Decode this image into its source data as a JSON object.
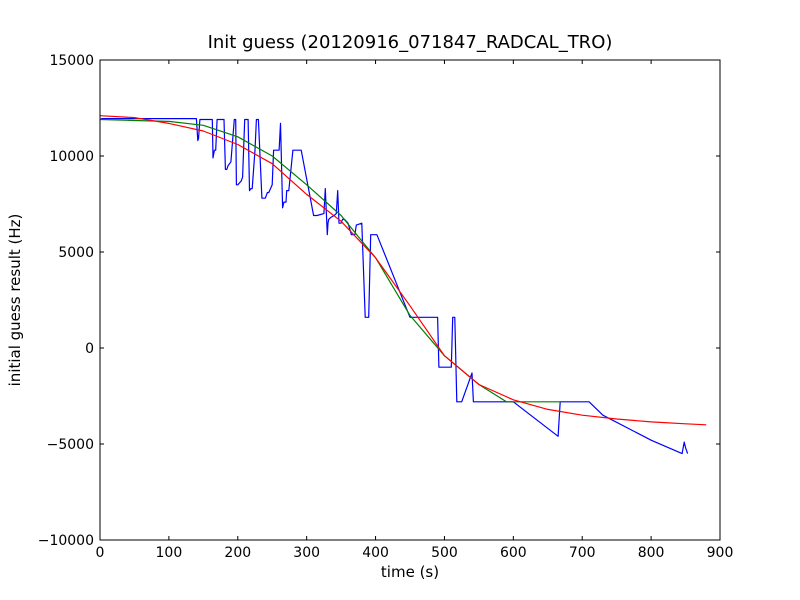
{
  "chart_data": {
    "type": "line",
    "title": "Init guess (20120916_071847_RADCAL_TRO)",
    "xlabel": "time (s)",
    "ylabel": "initial guess result (Hz)",
    "xlim": [
      0,
      900
    ],
    "ylim": [
      -10000,
      15000
    ],
    "xticks": [
      0,
      100,
      200,
      300,
      400,
      500,
      600,
      700,
      800,
      900
    ],
    "yticks": [
      -10000,
      -5000,
      0,
      5000,
      10000,
      15000
    ],
    "xtick_labels": [
      "0",
      "100",
      "200",
      "300",
      "400",
      "500",
      "600",
      "700",
      "800",
      "900"
    ],
    "ytick_labels": [
      "−10000",
      "−5000",
      "0",
      "5000",
      "10000",
      "15000"
    ],
    "grid": false,
    "series": [
      {
        "color": "#0000ff",
        "x": [
          0,
          3,
          140,
          142,
          143,
          145,
          147,
          148,
          163,
          164,
          166,
          168,
          170,
          172,
          173,
          180,
          182,
          184,
          186,
          190,
          195,
          197,
          198,
          200,
          205,
          207,
          210,
          215,
          217,
          219,
          221,
          225,
          227,
          228,
          230,
          235,
          240,
          243,
          245,
          250,
          252,
          254,
          260,
          262,
          265,
          267,
          270,
          271,
          272,
          274,
          280,
          283,
          290,
          292,
          310,
          312,
          315,
          325,
          327,
          330,
          331,
          332,
          335,
          340,
          343,
          345,
          347,
          350,
          352,
          355,
          360,
          365,
          370,
          372,
          380,
          385,
          390,
          393,
          395,
          397,
          398,
          400,
          402,
          450,
          452,
          470,
          472,
          480,
          485,
          490,
          492,
          510,
          512,
          515,
          518,
          520,
          522,
          525,
          540,
          542,
          543,
          545,
          548,
          600,
          665,
          668,
          670,
          675,
          680,
          710,
          730,
          800,
          845,
          848,
          850,
          853
        ],
        "y": [
          11900,
          11950,
          11950,
          10800,
          10900,
          11900,
          11900,
          11900,
          11900,
          9900,
          10300,
          10300,
          11900,
          11900,
          11900,
          11900,
          9300,
          9300,
          9500,
          9700,
          11900,
          11900,
          8500,
          8500,
          8700,
          8900,
          11900,
          11900,
          8200,
          8300,
          8300,
          10300,
          11900,
          11900,
          11900,
          7800,
          7800,
          8100,
          8100,
          8500,
          10300,
          10300,
          10300,
          11700,
          7300,
          7600,
          7600,
          8200,
          8200,
          8200,
          10300,
          10300,
          10300,
          10300,
          6900,
          6900,
          6900,
          7000,
          8300,
          5900,
          6500,
          6700,
          6800,
          6900,
          7000,
          8200,
          6500,
          6500,
          6700,
          6700,
          6500,
          5900,
          5900,
          6400,
          6500,
          1600,
          1600,
          5900,
          5900,
          5900,
          5900,
          5900,
          5900,
          1600,
          1600,
          1600,
          1600,
          1600,
          1600,
          1600,
          -1000,
          -1000,
          1600,
          1600,
          -2800,
          -2800,
          -2800,
          -2800,
          -1300,
          -2800,
          -2800,
          -2800,
          -2800,
          -2800,
          -4600,
          -2800,
          -2800,
          -2800,
          -2800,
          -2800,
          -3500,
          -4800,
          -5500,
          -4900,
          -5200,
          -5500
        ]
      },
      {
        "color": "#008000",
        "x": [
          0,
          50,
          100,
          150,
          200,
          250,
          300,
          350,
          400,
          450,
          500,
          550,
          590,
          600,
          670
        ],
        "y": [
          11900,
          11850,
          11800,
          11600,
          11000,
          10000,
          8500,
          6900,
          4700,
          1700,
          -400,
          -1900,
          -2800,
          -2800,
          -2800
        ]
      },
      {
        "color": "#ff0000",
        "x": [
          0,
          50,
          100,
          150,
          200,
          250,
          300,
          350,
          400,
          450,
          500,
          550,
          600,
          650,
          700,
          750,
          800,
          850,
          880
        ],
        "y": [
          12100,
          12000,
          11700,
          11300,
          10600,
          9600,
          8000,
          6600,
          4700,
          2200,
          -400,
          -1900,
          -2700,
          -3200,
          -3500,
          -3700,
          -3850,
          -3950,
          -4000
        ]
      }
    ]
  }
}
